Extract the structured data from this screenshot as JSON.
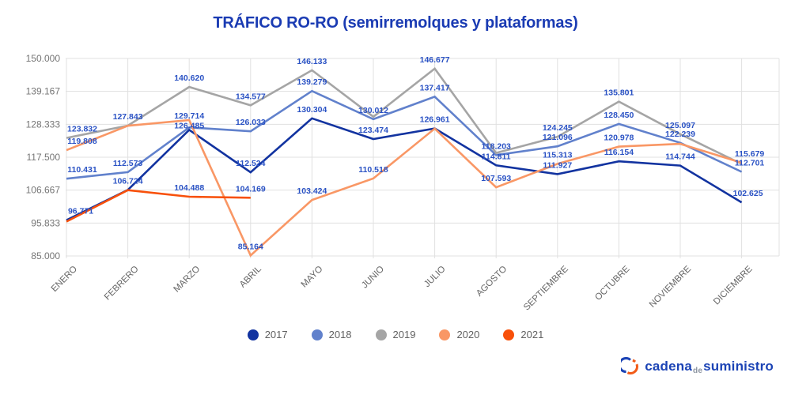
{
  "title": "TRÁFICO RO-RO (semirremolques y plataformas)",
  "colors": {
    "title": "#1A3BB3",
    "annotation": "#2A52C4",
    "axis_text": "#757575",
    "month_text": "#666666",
    "legend_text": "#616161",
    "grid": "#E0E0E0",
    "logo_blue": "#1B43B5",
    "logo_orange": "#F25C19",
    "logo_de": "#8C94A0"
  },
  "logo": {
    "part1": "cadena",
    "part2": "de",
    "part3": "suministro"
  },
  "chart_data": {
    "type": "line",
    "title": "TRÁFICO RO-RO (semirremolques y plataformas)",
    "xlabel": "",
    "ylabel": "",
    "grid": true,
    "legend_position": "bottom",
    "ylim": [
      85000,
      150000
    ],
    "yticks": [
      "150.000",
      "139.167",
      "128.333",
      "117.500",
      "106.667",
      "95.833",
      "85.000"
    ],
    "categories": [
      "ENERO",
      "FEBRERO",
      "MARZO",
      "ABRIL",
      "MAYO",
      "JUNIO",
      "JULIO",
      "AGOSTO",
      "SEPTIEMBRE",
      "OCTUBRE",
      "NOVIEMBRE",
      "DICIEMBRE"
    ],
    "series": [
      {
        "name": "2017",
        "color": "#1233A0",
        "values": [
          96771,
          106724,
          126485,
          112524,
          130304,
          123474,
          126961,
          114811,
          111927,
          116154,
          114744,
          102625
        ]
      },
      {
        "name": "2018",
        "color": "#6181CC",
        "values": [
          110431,
          112573,
          127300,
          126033,
          139279,
          130012,
          137417,
          118203,
          121096,
          128450,
          122239,
          112701
        ]
      },
      {
        "name": "2019",
        "color": "#A5A5A5",
        "values": [
          123832,
          127900,
          140620,
          134577,
          146133,
          130800,
          146677,
          118900,
          124245,
          135801,
          125097,
          115300
        ]
      },
      {
        "name": "2020",
        "color": "#F99765",
        "values": [
          119808,
          127843,
          129714,
          85164,
          103424,
          110518,
          126900,
          107593,
          115313,
          120978,
          121900,
          115679
        ]
      },
      {
        "name": "2021",
        "color": "#F8500A",
        "values": [
          96300,
          106650,
          104488,
          104169,
          null,
          null,
          null,
          null,
          null,
          null,
          null,
          null
        ]
      }
    ],
    "annotations": [
      {
        "series": "2019",
        "month": 0,
        "text": "123.832",
        "dx": 20
      },
      {
        "series": "2020",
        "month": 0,
        "text": "119.808",
        "dx": 20
      },
      {
        "series": "2018",
        "month": 0,
        "text": "110.431",
        "dx": 20
      },
      {
        "series": "2017",
        "month": 0,
        "text": "96.771",
        "dx": 18
      },
      {
        "series": "2020",
        "month": 1,
        "text": "127.843"
      },
      {
        "series": "2018",
        "month": 1,
        "text": "112.573"
      },
      {
        "series": "2017",
        "month": 1,
        "text": "106.724"
      },
      {
        "series": "2019",
        "month": 2,
        "text": "140.620"
      },
      {
        "series": "2020",
        "month": 2,
        "text": "129.714",
        "dy": 6
      },
      {
        "series": "2017",
        "month": 2,
        "text": "126.485",
        "dy": 6
      },
      {
        "series": "2021",
        "month": 2,
        "text": "104.488"
      },
      {
        "series": "2019",
        "month": 3,
        "text": "134.577"
      },
      {
        "series": "2018",
        "month": 3,
        "text": "126.033"
      },
      {
        "series": "2017",
        "month": 3,
        "text": "112.524"
      },
      {
        "series": "2021",
        "month": 3,
        "text": "104.169"
      },
      {
        "series": "2020",
        "month": 3,
        "text": "85.164"
      },
      {
        "series": "2019",
        "month": 4,
        "text": "146.133"
      },
      {
        "series": "2018",
        "month": 4,
        "text": "139.279"
      },
      {
        "series": "2017",
        "month": 4,
        "text": "130.304"
      },
      {
        "series": "2020",
        "month": 4,
        "text": "103.424"
      },
      {
        "series": "2018",
        "month": 5,
        "text": "130.012"
      },
      {
        "series": "2017",
        "month": 5,
        "text": "123.474"
      },
      {
        "series": "2020",
        "month": 5,
        "text": "110.518"
      },
      {
        "series": "2019",
        "month": 6,
        "text": "146.677"
      },
      {
        "series": "2018",
        "month": 6,
        "text": "137.417"
      },
      {
        "series": "2017",
        "month": 6,
        "text": "126.961"
      },
      {
        "series": "2018",
        "month": 7,
        "text": "118.203"
      },
      {
        "series": "2017",
        "month": 7,
        "text": "114.811"
      },
      {
        "series": "2020",
        "month": 7,
        "text": "107.593"
      },
      {
        "series": "2019",
        "month": 8,
        "text": "124.245"
      },
      {
        "series": "2018",
        "month": 8,
        "text": "121.096"
      },
      {
        "series": "2020",
        "month": 8,
        "text": "115.313"
      },
      {
        "series": "2017",
        "month": 8,
        "text": "111.927"
      },
      {
        "series": "2019",
        "month": 9,
        "text": "135.801"
      },
      {
        "series": "2018",
        "month": 9,
        "text": "128.450"
      },
      {
        "series": "2020",
        "month": 9,
        "text": "120.978"
      },
      {
        "series": "2017",
        "month": 9,
        "text": "116.154"
      },
      {
        "series": "2019",
        "month": 10,
        "text": "125.097"
      },
      {
        "series": "2018",
        "month": 10,
        "text": "122.239"
      },
      {
        "series": "2017",
        "month": 10,
        "text": "114.744"
      },
      {
        "series": "2020",
        "month": 11,
        "text": "115.679",
        "dx": 10
      },
      {
        "series": "2018",
        "month": 11,
        "text": "112.701",
        "dx": 10
      },
      {
        "series": "2017",
        "month": 11,
        "text": "102.625",
        "dx": 8
      }
    ]
  }
}
